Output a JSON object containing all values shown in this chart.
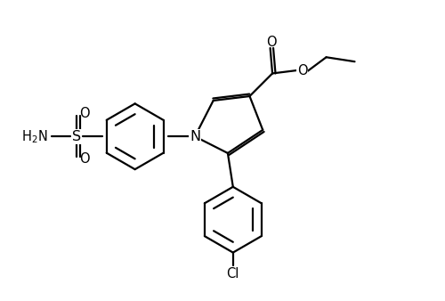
{
  "bg_color": "#ffffff",
  "line_color": "#000000",
  "line_width": 1.6,
  "font_size": 10.5,
  "xlim": [
    0,
    10
  ],
  "ylim": [
    0,
    6.76
  ]
}
